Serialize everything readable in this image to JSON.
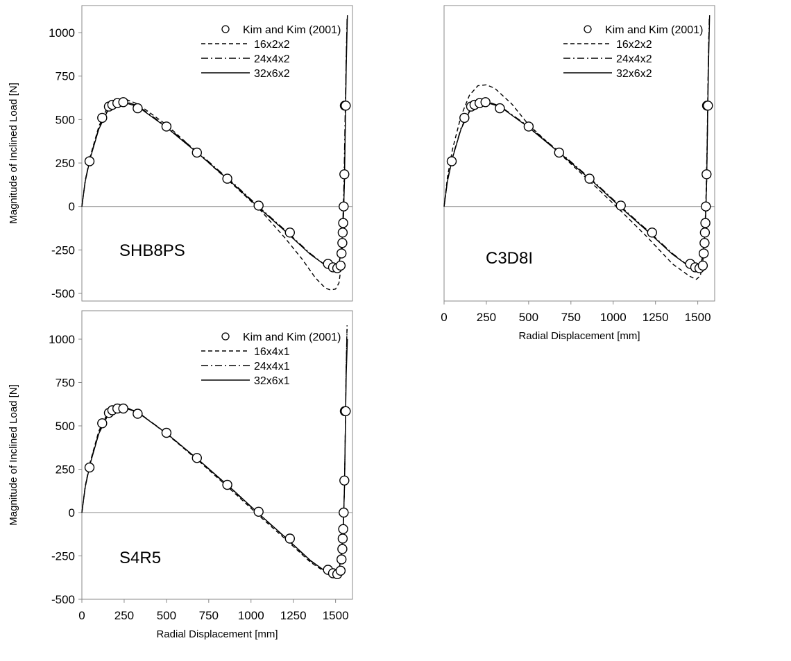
{
  "chart_data": [
    {
      "type": "scatter",
      "panel_label": "SHB8PS",
      "ylabel": "Magnitude of Inclined Load [N]",
      "xlabel": "",
      "xlim": [
        0,
        1600
      ],
      "ylim": [
        -500,
        1100
      ],
      "yticks": [
        "-500",
        "-250",
        "0",
        "250",
        "500",
        "750",
        "1000"
      ],
      "xticks": [],
      "legend_position": "top-right",
      "reference": {
        "name": "Kim and Kim (2001)",
        "x": [
          45,
          120,
          160,
          180,
          210,
          245,
          330,
          500,
          680,
          860,
          1045,
          1230,
          1455,
          1485,
          1510,
          1530,
          1535,
          1540,
          1542,
          1545,
          1548,
          1552,
          1555,
          1560
        ],
        "y": [
          260,
          510,
          575,
          585,
          595,
          600,
          565,
          460,
          310,
          160,
          5,
          -150,
          -330,
          -350,
          -355,
          -340,
          -270,
          -210,
          -150,
          -95,
          0,
          185,
          580,
          580
        ]
      },
      "series": [
        {
          "name": "16x2x2",
          "style": "dashed",
          "x": [
            0,
            20,
            50,
            100,
            150,
            200,
            250,
            330,
            500,
            700,
            900,
            1050,
            1200,
            1300,
            1380,
            1440,
            1470,
            1500,
            1520,
            1535,
            1545,
            1552,
            1558,
            1562,
            1568
          ],
          "y": [
            0,
            150,
            290,
            460,
            570,
            615,
            620,
            590,
            470,
            295,
            120,
            -15,
            -180,
            -300,
            -410,
            -470,
            -480,
            -475,
            -440,
            -330,
            -120,
            150,
            500,
            800,
            1060
          ]
        },
        {
          "name": "24x4x2",
          "style": "dashdot",
          "x": [
            0,
            20,
            50,
            100,
            150,
            200,
            250,
            330,
            500,
            700,
            900,
            1050,
            1200,
            1350,
            1450,
            1490,
            1515,
            1530,
            1542,
            1550,
            1556,
            1562,
            1568
          ],
          "y": [
            0,
            150,
            285,
            450,
            550,
            600,
            605,
            580,
            460,
            300,
            130,
            -5,
            -135,
            -270,
            -345,
            -365,
            -350,
            -280,
            -120,
            150,
            500,
            800,
            1080
          ]
        },
        {
          "name": "32x6x2",
          "style": "solid",
          "x": [
            0,
            20,
            50,
            100,
            150,
            200,
            250,
            330,
            500,
            700,
            900,
            1050,
            1200,
            1350,
            1450,
            1490,
            1515,
            1532,
            1545,
            1553,
            1558,
            1563,
            1570
          ],
          "y": [
            0,
            145,
            280,
            445,
            545,
            590,
            598,
            575,
            455,
            295,
            125,
            -10,
            -140,
            -275,
            -345,
            -360,
            -345,
            -270,
            -100,
            150,
            500,
            800,
            1100
          ]
        }
      ]
    },
    {
      "type": "scatter",
      "panel_label": "C3D8I",
      "ylabel": "",
      "xlabel": "Radial Displacement [mm]",
      "xlim": [
        0,
        1600
      ],
      "ylim": [
        -500,
        1100
      ],
      "yticks": [],
      "xticks": [
        "0",
        "250",
        "500",
        "750",
        "1000",
        "1250",
        "1500"
      ],
      "legend_position": "top-right",
      "reference": {
        "name": "Kim and Kim (2001)",
        "x": [
          45,
          120,
          160,
          180,
          210,
          245,
          330,
          500,
          680,
          860,
          1045,
          1230,
          1455,
          1485,
          1510,
          1530,
          1535,
          1540,
          1542,
          1545,
          1548,
          1552,
          1555,
          1560
        ],
        "y": [
          260,
          510,
          575,
          585,
          595,
          600,
          565,
          460,
          310,
          160,
          5,
          -150,
          -330,
          -350,
          -355,
          -340,
          -270,
          -210,
          -150,
          -95,
          0,
          185,
          580,
          580
        ]
      },
      "series": [
        {
          "name": "16x2x2",
          "style": "dashed",
          "x": [
            0,
            20,
            50,
            100,
            150,
            200,
            250,
            300,
            400,
            500,
            700,
            900,
            1050,
            1200,
            1350,
            1450,
            1490,
            1515,
            1530,
            1542,
            1550,
            1556,
            1560,
            1565
          ],
          "y": [
            0,
            170,
            330,
            520,
            640,
            695,
            700,
            680,
            590,
            470,
            290,
            110,
            -30,
            -175,
            -330,
            -400,
            -420,
            -400,
            -320,
            -150,
            100,
            400,
            700,
            980
          ]
        },
        {
          "name": "24x4x2",
          "style": "dashdot",
          "x": [
            0,
            20,
            50,
            100,
            150,
            200,
            250,
            330,
            500,
            700,
            900,
            1050,
            1200,
            1350,
            1450,
            1490,
            1515,
            1532,
            1545,
            1553,
            1558,
            1562,
            1568
          ],
          "y": [
            0,
            150,
            285,
            450,
            550,
            600,
            605,
            578,
            460,
            300,
            130,
            -5,
            -135,
            -270,
            -345,
            -365,
            -350,
            -270,
            -100,
            150,
            500,
            800,
            1080
          ]
        },
        {
          "name": "32x6x2",
          "style": "solid",
          "x": [
            0,
            20,
            50,
            100,
            150,
            200,
            250,
            330,
            500,
            700,
            900,
            1050,
            1200,
            1350,
            1450,
            1490,
            1515,
            1532,
            1545,
            1553,
            1558,
            1563,
            1570
          ],
          "y": [
            0,
            145,
            280,
            445,
            545,
            590,
            598,
            575,
            455,
            295,
            125,
            -10,
            -140,
            -275,
            -345,
            -360,
            -345,
            -270,
            -100,
            150,
            500,
            800,
            1100
          ]
        }
      ]
    },
    {
      "type": "scatter",
      "panel_label": "S4R5",
      "ylabel": "Magnitude of Inclined Load [N]",
      "xlabel": "Radial Displacement [mm]",
      "xlim": [
        0,
        1600
      ],
      "ylim": [
        -500,
        1100
      ],
      "yticks": [
        "-500",
        "-250",
        "0",
        "250",
        "500",
        "750",
        "1000"
      ],
      "xticks": [
        "0",
        "250",
        "500",
        "750",
        "1000",
        "1250",
        "1500"
      ],
      "legend_position": "top-right",
      "reference": {
        "name": "Kim and Kim (2001)",
        "x": [
          45,
          120,
          160,
          180,
          210,
          245,
          330,
          500,
          680,
          860,
          1045,
          1230,
          1455,
          1485,
          1510,
          1530,
          1535,
          1540,
          1542,
          1545,
          1548,
          1552,
          1555,
          1560
        ],
        "y": [
          260,
          515,
          575,
          590,
          600,
          600,
          570,
          460,
          315,
          160,
          5,
          -150,
          -330,
          -350,
          -355,
          -335,
          -270,
          -210,
          -150,
          -95,
          0,
          185,
          585,
          585
        ]
      },
      "series": [
        {
          "name": "16x4x1",
          "style": "dashed",
          "x": [
            0,
            20,
            50,
            100,
            150,
            200,
            250,
            330,
            500,
            700,
            900,
            1050,
            1200,
            1350,
            1450,
            1490,
            1515,
            1532,
            1545,
            1553,
            1558,
            1562,
            1568
          ],
          "y": [
            0,
            155,
            295,
            470,
            570,
            610,
            610,
            580,
            455,
            290,
            115,
            -20,
            -150,
            -285,
            -350,
            -365,
            -350,
            -270,
            -100,
            150,
            500,
            800,
            1080
          ]
        },
        {
          "name": "24x4x1",
          "style": "dashdot",
          "x": [
            0,
            20,
            50,
            100,
            150,
            200,
            250,
            330,
            500,
            700,
            900,
            1050,
            1200,
            1350,
            1450,
            1490,
            1515,
            1532,
            1545,
            1553,
            1558,
            1562,
            1568
          ],
          "y": [
            0,
            150,
            290,
            460,
            560,
            605,
            608,
            580,
            458,
            295,
            122,
            -12,
            -142,
            -278,
            -345,
            -362,
            -348,
            -270,
            -100,
            150,
            500,
            800,
            1060
          ]
        },
        {
          "name": "32x6x1",
          "style": "solid",
          "x": [
            0,
            20,
            50,
            100,
            150,
            200,
            250,
            330,
            500,
            700,
            900,
            1050,
            1200,
            1350,
            1450,
            1490,
            1515,
            1532,
            1545,
            1553,
            1558,
            1563,
            1570
          ],
          "y": [
            0,
            148,
            285,
            455,
            555,
            600,
            605,
            578,
            457,
            296,
            125,
            -10,
            -140,
            -275,
            -345,
            -360,
            -345,
            -270,
            -100,
            150,
            500,
            800,
            1000
          ]
        }
      ]
    }
  ]
}
